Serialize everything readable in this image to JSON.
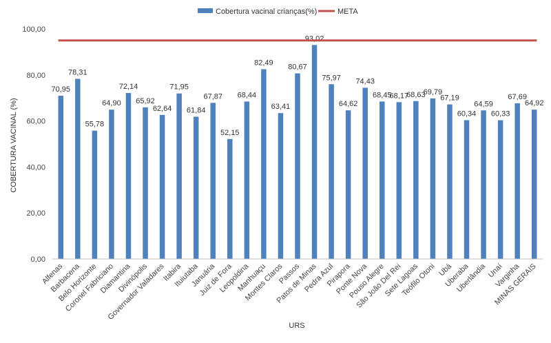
{
  "chart_data": {
    "type": "bar",
    "categories": [
      "Alfenas",
      "Barbacena",
      "Belo Horizonte",
      "Coronel Fabriciano",
      "Diamantina",
      "Divinópolis",
      "Governador Valadares",
      "Itabira",
      "Ituiutaba",
      "Januária",
      "Juiz de Fora",
      "Leopoldina",
      "Manhuaçu",
      "Montes Claros",
      "Passos",
      "Patos de Minas",
      "Pedra Azul",
      "Pirapora",
      "Ponte Nova",
      "Pouso Alegre",
      "São João Del Rei",
      "Sete Lagoas",
      "Teófilo Otoni",
      "Ubá",
      "Uberaba",
      "Uberlândia",
      "Unaí",
      "Varginha",
      "MINAS GERAIS"
    ],
    "series": [
      {
        "name": "Cobertura vacinal crianças(%)",
        "values": [
          70.95,
          78.31,
          55.78,
          64.9,
          72.14,
          65.92,
          62.64,
          71.95,
          61.84,
          67.87,
          52.15,
          68.44,
          82.49,
          63.41,
          80.67,
          93.02,
          75.97,
          64.62,
          74.43,
          68.45,
          68.17,
          68.63,
          69.79,
          67.19,
          60.34,
          64.59,
          60.33,
          67.69,
          64.92
        ],
        "value_labels": [
          "70,95",
          "78,31",
          "55,78",
          "64,90",
          "72,14",
          "65,92",
          "62,64",
          "71,95",
          "61,84",
          "67,87",
          "52,15",
          "68,44",
          "82,49",
          "63,41",
          "80,67",
          "93,02",
          "75,97",
          "64,62",
          "74,43",
          "68,45",
          "68,17",
          "68,63",
          "69,79",
          "67,19",
          "60,34",
          "64,59",
          "60,33",
          "67,69",
          "64,92"
        ],
        "color": "#4f81bd"
      }
    ],
    "reference_line": {
      "name": "META",
      "value": 95,
      "color": "#c0504d"
    },
    "title": "",
    "xlabel": "URS",
    "ylabel": "COBERTURA VACINAL (%)",
    "ylim": [
      0,
      100
    ],
    "yticks": [
      0,
      20,
      40,
      60,
      80,
      100
    ],
    "ytick_labels": [
      "0,00",
      "20,00",
      "40,00",
      "60,00",
      "80,00",
      "100,00"
    ],
    "grid": false,
    "legend_position": "top"
  }
}
